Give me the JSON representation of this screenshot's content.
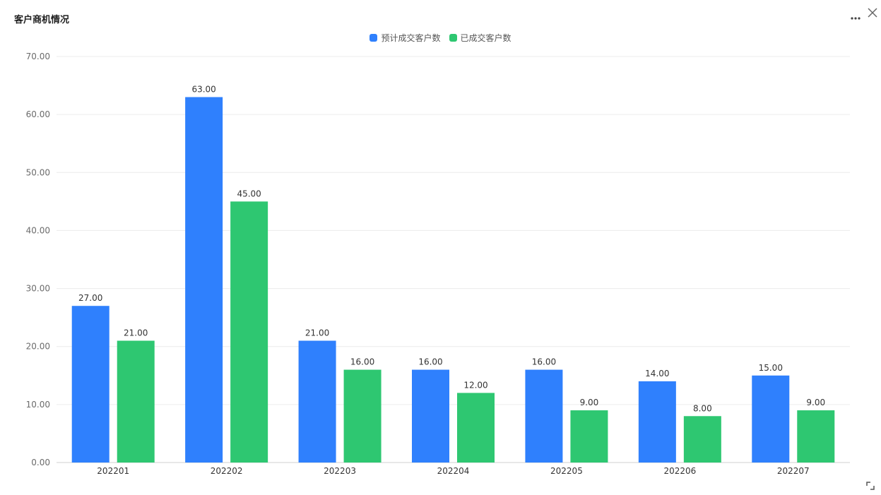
{
  "panel": {
    "title": "客户商机情况"
  },
  "icons": {
    "more": "more-dots-icon",
    "close": "close-icon",
    "expand": "expand-corner-icon"
  },
  "chart_data": {
    "type": "bar",
    "categories": [
      "202201",
      "202202",
      "202203",
      "202204",
      "202205",
      "202206",
      "202207"
    ],
    "series": [
      {
        "name": "预计成交客户数",
        "color": "#2f80fd",
        "values": [
          27,
          63,
          21,
          16,
          16,
          14,
          15
        ]
      },
      {
        "name": "已成交客户数",
        "color": "#2ec771",
        "values": [
          21,
          45,
          16,
          12,
          9,
          8,
          9
        ]
      }
    ],
    "ylim": [
      0,
      70
    ],
    "yticks": [
      "0.00",
      "10.00",
      "20.00",
      "30.00",
      "40.00",
      "50.00",
      "60.00",
      "70.00"
    ],
    "data_labels": [
      [
        "27.00",
        "63.00",
        "21.00",
        "16.00",
        "16.00",
        "14.00",
        "15.00"
      ],
      [
        "21.00",
        "45.00",
        "16.00",
        "12.00",
        "9.00",
        "8.00",
        "9.00"
      ]
    ],
    "grid": true,
    "legend_position": "top-center"
  }
}
